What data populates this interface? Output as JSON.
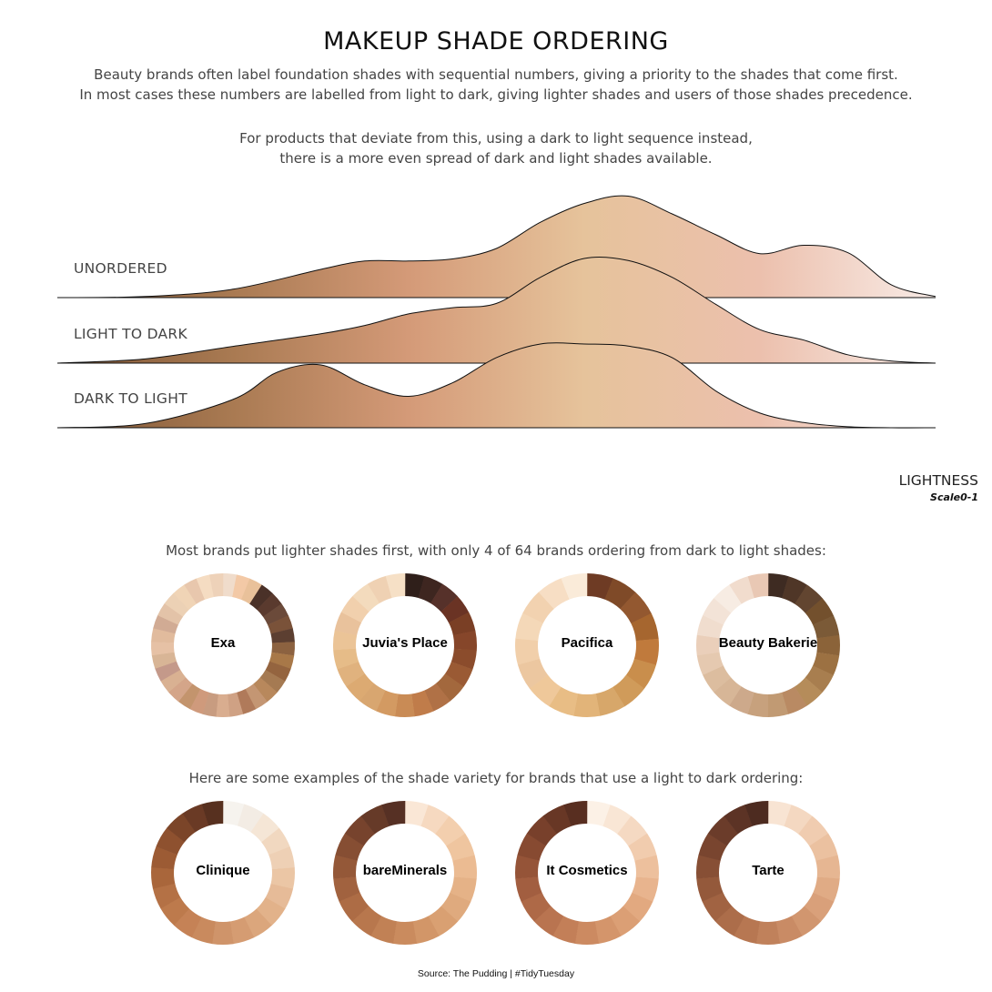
{
  "header": {
    "title": "MAKEUP SHADE ORDERING",
    "subtitle_line1": "Beauty brands often label foundation shades with sequential numbers, giving a priority to the shades that come first.",
    "subtitle_line2": "In most cases these numbers are labelled from light to dark, giving lighter shades and users of those shades precedence.",
    "subtitle_line3": "For products that deviate from this, using a dark to light sequence instead,",
    "subtitle_line4": "there is a more even spread of dark and light shades available."
  },
  "chart_data": [
    {
      "type": "area",
      "subtype": "ridgeline-density",
      "xlabel": "LIGHTNESS",
      "xscale_note": "Scale0-1",
      "xlim": [
        0,
        1
      ],
      "gradient": [
        "#7e5535",
        "#a97a52",
        "#d49a78",
        "#e6c39b",
        "#ecc0ad",
        "#f8ebe6"
      ],
      "series": [
        {
          "name": "UNORDERED",
          "x": [
            0.0,
            0.1,
            0.2,
            0.3,
            0.35,
            0.4,
            0.45,
            0.5,
            0.55,
            0.6,
            0.65,
            0.7,
            0.75,
            0.8,
            0.85,
            0.9,
            0.95,
            1.0
          ],
          "y": [
            0.0,
            0.01,
            0.08,
            0.27,
            0.35,
            0.35,
            0.37,
            0.47,
            0.72,
            0.9,
            0.97,
            0.8,
            0.6,
            0.42,
            0.5,
            0.43,
            0.12,
            0.01
          ]
        },
        {
          "name": "LIGHT TO DARK",
          "x": [
            0.0,
            0.1,
            0.2,
            0.3,
            0.35,
            0.4,
            0.45,
            0.5,
            0.55,
            0.6,
            0.65,
            0.7,
            0.75,
            0.8,
            0.85,
            0.9,
            0.95,
            1.0
          ],
          "y": [
            0.0,
            0.04,
            0.16,
            0.28,
            0.36,
            0.47,
            0.53,
            0.57,
            0.82,
            1.0,
            0.98,
            0.82,
            0.56,
            0.32,
            0.22,
            0.08,
            0.02,
            0.0
          ]
        },
        {
          "name": "DARK TO LIGHT",
          "x": [
            0.0,
            0.1,
            0.2,
            0.25,
            0.3,
            0.35,
            0.4,
            0.45,
            0.5,
            0.55,
            0.6,
            0.65,
            0.7,
            0.75,
            0.8,
            0.85,
            0.9,
            0.95,
            1.0
          ],
          "y": [
            0.0,
            0.04,
            0.27,
            0.53,
            0.6,
            0.41,
            0.3,
            0.43,
            0.67,
            0.8,
            0.8,
            0.78,
            0.67,
            0.35,
            0.14,
            0.05,
            0.01,
            0.0,
            0.0
          ]
        }
      ]
    },
    {
      "type": "pie",
      "subtype": "donut",
      "title": "Most brands put lighter shades first, with only 4 of 64 brands ordering from dark to light shades:",
      "series": [
        {
          "name": "Exa",
          "shade_colors": [
            "#f0dccb",
            "#f3c9a6",
            "#e9c19a",
            "#4a3128",
            "#5a3a2e",
            "#6b4a3a",
            "#7a5239",
            "#5c3f31",
            "#8c6240",
            "#a87848",
            "#94643f",
            "#a57a52",
            "#b8885c",
            "#c49673",
            "#b07a5a",
            "#cfa184",
            "#d9ad8f",
            "#c89c80",
            "#cf9a7c",
            "#c3946d",
            "#d4a589",
            "#d9b192",
            "#c4998a",
            "#d8b596",
            "#e6c1a5",
            "#e1bb9d",
            "#d1ab94",
            "#e3c3a8",
            "#ecd1b5",
            "#f0d4b6",
            "#e8c7ad",
            "#f5dcc2",
            "#eed2b9"
          ]
        },
        {
          "name": "Juvia's Place",
          "shade_colors": [
            "#2f1f1a",
            "#3e2620",
            "#56312a",
            "#6a3324",
            "#7a3f25",
            "#86462a",
            "#8b4c2c",
            "#9a5a34",
            "#a3683d",
            "#b07146",
            "#c07c4a",
            "#c98b55",
            "#d39a62",
            "#d8a670",
            "#dcaa72",
            "#e0b27e",
            "#e6bc88",
            "#ebc497",
            "#e9c29c",
            "#f1d0ad",
            "#f3dbbd",
            "#efd1b3",
            "#f6e0c6"
          ]
        },
        {
          "name": "Pacifica",
          "shade_colors": [
            "#6e3b24",
            "#7f4a28",
            "#935830",
            "#a6662f",
            "#c07a3c",
            "#c98e4c",
            "#d09b5a",
            "#d7a76a",
            "#e2b479",
            "#e8bd85",
            "#efc89a",
            "#ecc7a0",
            "#f1cfaa",
            "#f4d8b8",
            "#f2d2b0",
            "#f7dec4",
            "#faebd9"
          ]
        },
        {
          "name": "Beauty Bakerie",
          "shade_colors": [
            "#3e2b22",
            "#4f3627",
            "#624530",
            "#73502d",
            "#7b5a37",
            "#8b6339",
            "#9c7142",
            "#a87e4f",
            "#b58c5a",
            "#b98a63",
            "#c19a73",
            "#c7a17d",
            "#cda98b",
            "#d7b697",
            "#dcbd9f",
            "#e5c9b0",
            "#eacfba",
            "#f0ddce",
            "#f3e3d7",
            "#f7ece3",
            "#f1dccd",
            "#e9c8b4"
          ]
        }
      ]
    },
    {
      "type": "pie",
      "subtype": "donut",
      "title": "Here are some examples of the shade variety for brands that use a light to dark ordering:",
      "series": [
        {
          "name": "Clinique",
          "shade_colors": [
            "#f6f3ee",
            "#f3ece4",
            "#f5e6d6",
            "#f1d8c0",
            "#eed0b5",
            "#ebc6a5",
            "#e6bb98",
            "#e2b28a",
            "#dba67c",
            "#d59c72",
            "#cf946a",
            "#c98a5e",
            "#c58256",
            "#bd7a4c",
            "#b47145",
            "#a9663b",
            "#9c5b34",
            "#8e512f",
            "#7b4529",
            "#6a3a25",
            "#57301f"
          ]
        },
        {
          "name": "bareMinerals",
          "shade_colors": [
            "#fae7d6",
            "#f6d9c0",
            "#f3cfae",
            "#efc59f",
            "#ebbb92",
            "#e5b287",
            "#dfaa7e",
            "#d9a072",
            "#d29668",
            "#ca8b5e",
            "#c18155",
            "#b8774d",
            "#ad6c45",
            "#a1623f",
            "#945838",
            "#864e33",
            "#77432d",
            "#663a28",
            "#563024"
          ]
        },
        {
          "name": "It Cosmetics",
          "shade_colors": [
            "#fcf1e6",
            "#f9e6d5",
            "#f5d9c2",
            "#f1ccae",
            "#edc09d",
            "#e8b48e",
            "#e2a980",
            "#db9f75",
            "#d4956b",
            "#cc8a61",
            "#c37f58",
            "#b97450",
            "#ae6947",
            "#a25e40",
            "#955438",
            "#874a31",
            "#78402b",
            "#683725",
            "#582e20"
          ]
        },
        {
          "name": "Tarte",
          "shade_colors": [
            "#f8e4d3",
            "#f4d8c1",
            "#f0ccb0",
            "#ebc1a0",
            "#e6b692",
            "#e0ab85",
            "#d9a07a",
            "#d1966f",
            "#c98b65",
            "#c0815b",
            "#b77752",
            "#ac6d4a",
            "#a16342",
            "#94593b",
            "#874f35",
            "#79452f",
            "#6b3c2a",
            "#5c3325",
            "#4d2b20"
          ]
        }
      ]
    }
  ],
  "axis": {
    "title": "LIGHTNESS",
    "scale_label": "Scale0-1"
  },
  "footer": {
    "source": "Source: The Pudding | #TidyTuesday"
  }
}
